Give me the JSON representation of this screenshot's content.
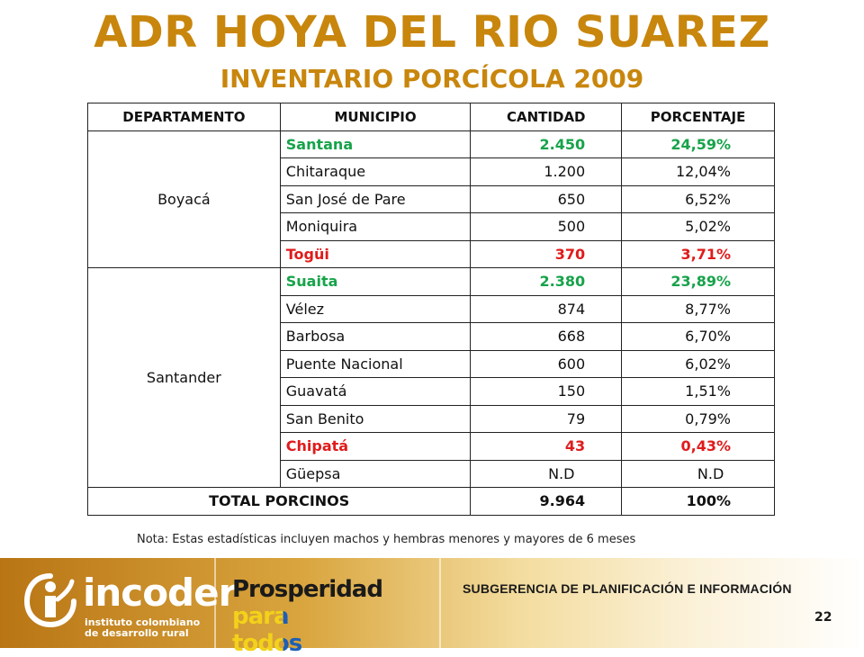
{
  "title": "ADR HOYA DEL RIO SUAREZ",
  "subtitle": "INVENTARIO PORCÍCOLA 2009",
  "table": {
    "headers": [
      "DEPARTAMENTO",
      "MUNICIPIO",
      "CANTIDAD",
      "PORCENTAJE"
    ],
    "groups": [
      {
        "departamento": "Boyacá",
        "rows": [
          {
            "municipio": "Santana",
            "cantidad": "2.450",
            "porcentaje": "24,59%",
            "highlight": "green"
          },
          {
            "municipio": "Chitaraque",
            "cantidad": "1.200",
            "porcentaje": "12,04%",
            "highlight": ""
          },
          {
            "municipio": "San José de Pare",
            "cantidad": "650",
            "porcentaje": "6,52%",
            "highlight": ""
          },
          {
            "municipio": "Moniquira",
            "cantidad": "500",
            "porcentaje": "5,02%",
            "highlight": ""
          },
          {
            "municipio": "Togüi",
            "cantidad": "370",
            "porcentaje": "3,71%",
            "highlight": "red"
          }
        ]
      },
      {
        "departamento": "Santander",
        "rows": [
          {
            "municipio": "Suaita",
            "cantidad": "2.380",
            "porcentaje": "23,89%",
            "highlight": "green"
          },
          {
            "municipio": "Vélez",
            "cantidad": "874",
            "porcentaje": "8,77%",
            "highlight": ""
          },
          {
            "municipio": "Barbosa",
            "cantidad": "668",
            "porcentaje": "6,70%",
            "highlight": ""
          },
          {
            "municipio": "Puente Nacional",
            "cantidad": "600",
            "porcentaje": "6,02%",
            "highlight": ""
          },
          {
            "municipio": "Guavatá",
            "cantidad": "150",
            "porcentaje": "1,51%",
            "highlight": ""
          },
          {
            "municipio": "San Benito",
            "cantidad": "79",
            "porcentaje": "0,79%",
            "highlight": ""
          },
          {
            "municipio": "Chipatá",
            "cantidad": "43",
            "porcentaje": "0,43%",
            "highlight": "red"
          },
          {
            "municipio": "Güepsa",
            "cantidad": "N.D",
            "porcentaje": "N.D",
            "highlight": "nd"
          }
        ]
      }
    ],
    "total": {
      "label": "TOTAL PORCINOS",
      "cantidad": "9.964",
      "porcentaje": "100%"
    }
  },
  "note": "Nota: Estas estadísticas incluyen machos y hembras menores y mayores de 6 meses",
  "footer": {
    "logo_name": "incoder",
    "logo_sub_1": "instituto colombiano",
    "logo_sub_2": "de desarrollo rural",
    "slogan_1": "Prosperidad",
    "slogan_2": "para todos",
    "subgerencia": "SUBGERENCIA DE PLANIFICACIÓN E INFORMACIÓN",
    "page_number": "22"
  },
  "colors": {
    "title": "#c8860d",
    "highlight_green": "#17a34a",
    "highlight_red": "#e01b1b",
    "footer_gold": "#b97514"
  }
}
